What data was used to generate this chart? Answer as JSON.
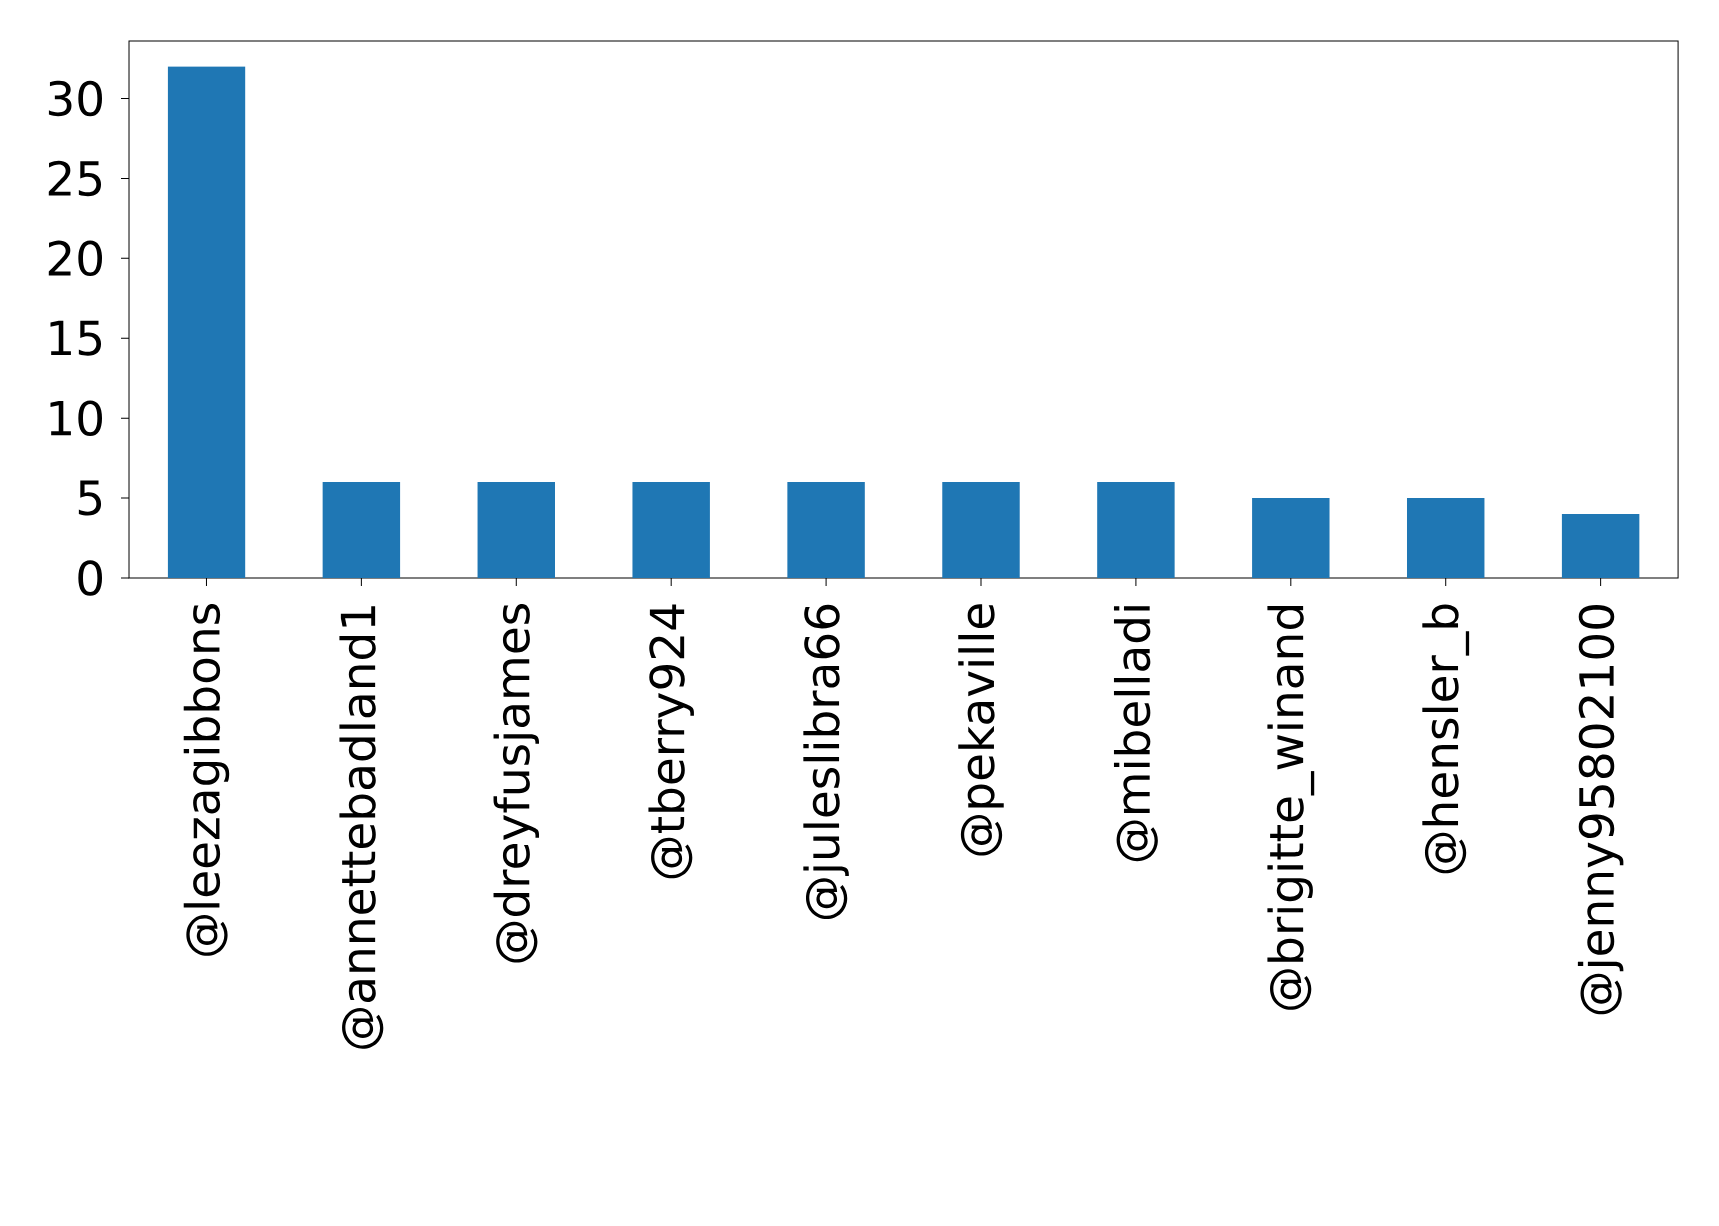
{
  "chart_data": {
    "type": "bar",
    "categories": [
      "@leezagibbons",
      "@annettebadland1",
      "@dreyfusjames",
      "@tberry924",
      "@juleslibra66",
      "@pekaville",
      "@mibelladi",
      "@brigitte_winand",
      "@hensler_b",
      "@jenny95802100"
    ],
    "values": [
      32,
      6,
      6,
      6,
      6,
      6,
      6,
      5,
      5,
      4
    ],
    "color": "#1f77b4",
    "ylim": [
      0,
      33.6
    ],
    "yticks": [
      0,
      5,
      10,
      15,
      20,
      25,
      30
    ]
  }
}
